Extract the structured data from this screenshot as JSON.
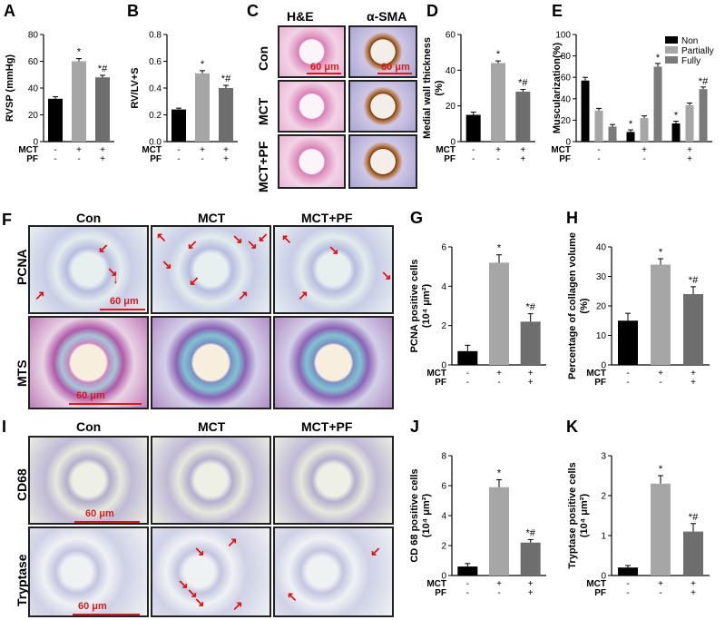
{
  "panel_letters": [
    "A",
    "B",
    "C",
    "D",
    "E",
    "F",
    "G",
    "H",
    "I",
    "J",
    "K"
  ],
  "micrographs": {
    "c_headers": [
      "H&E",
      "α-SMA"
    ],
    "c_rows": [
      "Con",
      "MCT",
      "MCT+PF"
    ],
    "f_headers": [
      "Con",
      "MCT",
      "MCT+PF"
    ],
    "f_rows": [
      "PCNA",
      "MTS"
    ],
    "i_headers": [
      "Con",
      "MCT",
      "MCT+PF"
    ],
    "i_rows": [
      "CD68",
      "Tryptase"
    ],
    "scale_label": "60 μm"
  },
  "treatment_rows": {
    "mct_label": "MCT",
    "pf_label": "PF",
    "mct": [
      "-",
      "+",
      "+"
    ],
    "pf": [
      "-",
      "-",
      "+"
    ]
  },
  "chart_data": [
    {
      "panel": "A",
      "type": "bar",
      "categories": [
        "Con",
        "MCT",
        "MCT+PF"
      ],
      "values": [
        32,
        60,
        48
      ],
      "errors": [
        1.5,
        2.0,
        1.5
      ],
      "ylabel": "RVSP (mmHg)",
      "ylim": [
        0,
        80
      ],
      "yticks": [
        0,
        20,
        40,
        60,
        80
      ],
      "annotations": [
        "",
        "*",
        "*#"
      ],
      "colors": [
        "#000000",
        "#a6a6a6",
        "#6e6e6e"
      ]
    },
    {
      "panel": "B",
      "type": "bar",
      "categories": [
        "Con",
        "MCT",
        "MCT+PF"
      ],
      "values": [
        0.24,
        0.51,
        0.4
      ],
      "errors": [
        0.01,
        0.02,
        0.02
      ],
      "ylabel": "RV/LV+S",
      "ylim": [
        0,
        0.8
      ],
      "yticks": [
        "0.0",
        "0.2",
        "0.4",
        "0.6",
        "0.8"
      ],
      "annotations": [
        "",
        "*",
        "*#"
      ],
      "colors": [
        "#000000",
        "#a6a6a6",
        "#6e6e6e"
      ]
    },
    {
      "panel": "D",
      "type": "bar",
      "categories": [
        "Con",
        "MCT",
        "MCT+PF"
      ],
      "values": [
        15,
        44,
        28
      ],
      "errors": [
        1.5,
        1.2,
        1.2
      ],
      "ylabel": "Medial wall thickness (%)",
      "ylim": [
        0,
        60
      ],
      "yticks": [
        0,
        20,
        40,
        60
      ],
      "annotations": [
        "",
        "*",
        "*#"
      ],
      "colors": [
        "#000000",
        "#a6a6a6",
        "#6e6e6e"
      ]
    },
    {
      "panel": "E",
      "type": "bar",
      "groups": [
        "Con",
        "MCT",
        "MCT+PF"
      ],
      "series": [
        {
          "name": "Non",
          "values": [
            57,
            9,
            17
          ],
          "errors": [
            3,
            2,
            2
          ]
        },
        {
          "name": "Partially",
          "values": [
            29,
            22,
            34
          ],
          "errors": [
            2,
            2,
            2
          ]
        },
        {
          "name": "Fully",
          "values": [
            14,
            70,
            49
          ],
          "errors": [
            2,
            3,
            2
          ]
        }
      ],
      "ylabel": "Muscularization(%)",
      "ylim": [
        0,
        100
      ],
      "yticks": [
        0,
        20,
        40,
        60,
        80,
        100
      ],
      "annotations": [
        [
          "",
          "",
          ""
        ],
        [
          "*",
          "",
          "*"
        ],
        [
          "*",
          "",
          "*#"
        ]
      ],
      "colors": [
        "#000000",
        "#a6a6a6",
        "#7a7a7a"
      ],
      "legend": "top-right"
    },
    {
      "panel": "G",
      "type": "bar",
      "categories": [
        "Con",
        "MCT",
        "MCT+PF"
      ],
      "values": [
        0.7,
        5.2,
        2.2
      ],
      "errors": [
        0.3,
        0.4,
        0.4
      ],
      "ylabel": "PCNA positive cells (10⁴ μm²)",
      "ylim": [
        0,
        6
      ],
      "yticks": [
        0,
        2,
        4,
        6
      ],
      "annotations": [
        "",
        "*",
        "*#"
      ],
      "colors": [
        "#000000",
        "#a6a6a6",
        "#6e6e6e"
      ]
    },
    {
      "panel": "H",
      "type": "bar",
      "categories": [
        "Con",
        "MCT",
        "MCT+PF"
      ],
      "values": [
        15,
        34,
        24
      ],
      "errors": [
        2.5,
        2.0,
        2.5
      ],
      "ylabel": "Percentage of collagen volume (%)",
      "ylim": [
        0,
        40
      ],
      "yticks": [
        0,
        10,
        20,
        30,
        40
      ],
      "annotations": [
        "",
        "*",
        "*#"
      ],
      "colors": [
        "#000000",
        "#a6a6a6",
        "#6e6e6e"
      ]
    },
    {
      "panel": "J",
      "type": "bar",
      "categories": [
        "Con",
        "MCT",
        "MCT+PF"
      ],
      "values": [
        0.6,
        5.9,
        2.2
      ],
      "errors": [
        0.2,
        0.5,
        0.2
      ],
      "ylabel": "CD 68 positive cells (10⁴ μm²)",
      "ylim": [
        0,
        8
      ],
      "yticks": [
        0,
        2,
        4,
        6,
        8
      ],
      "annotations": [
        "",
        "*",
        "*#"
      ],
      "colors": [
        "#000000",
        "#a6a6a6",
        "#6e6e6e"
      ]
    },
    {
      "panel": "K",
      "type": "bar",
      "categories": [
        "Con",
        "MCT",
        "MCT+PF"
      ],
      "values": [
        0.2,
        2.3,
        1.1
      ],
      "errors": [
        0.05,
        0.2,
        0.2
      ],
      "ylabel": "Tryptase positive cells (10⁴ μm²)",
      "ylim": [
        0,
        3
      ],
      "yticks": [
        0,
        1,
        2,
        3
      ],
      "annotations": [
        "",
        "*",
        "*#"
      ],
      "colors": [
        "#000000",
        "#a6a6a6",
        "#6e6e6e"
      ]
    }
  ]
}
